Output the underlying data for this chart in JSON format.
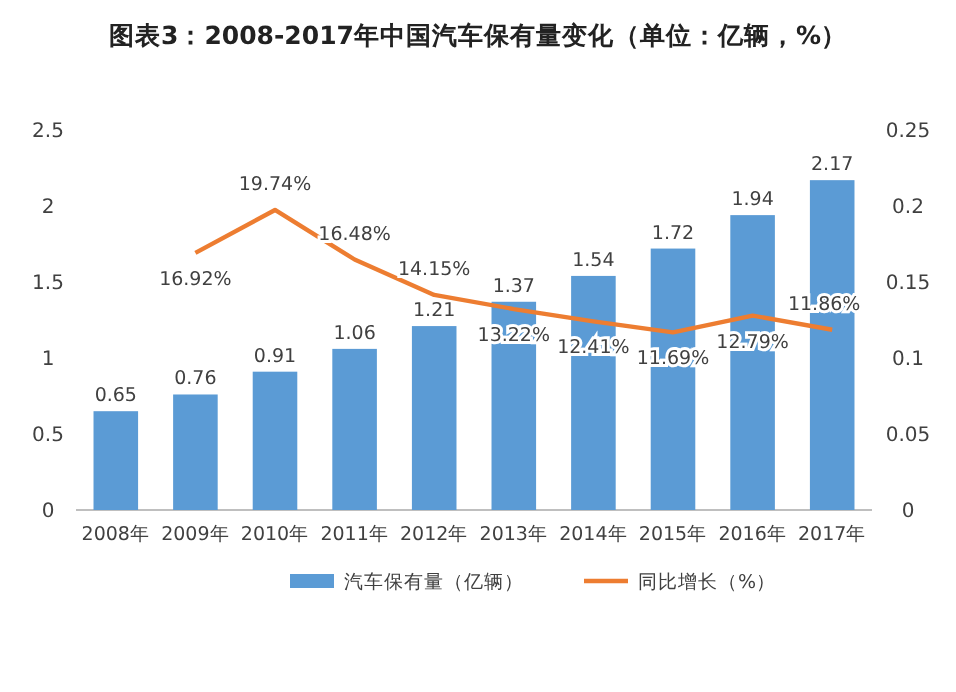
{
  "chart_data": {
    "type": "bar",
    "title": "图表3：2008-2017年中国汽车保有量变化（单位：亿辆，%）",
    "categories": [
      "2008年",
      "2009年",
      "2010年",
      "2011年",
      "2012年",
      "2013年",
      "2014年",
      "2015年",
      "2016年",
      "2017年"
    ],
    "series": [
      {
        "name": "汽车保有量（亿辆）",
        "color": "#5b9bd5",
        "values": [
          0.65,
          0.76,
          0.91,
          1.06,
          1.21,
          1.37,
          1.54,
          1.72,
          1.94,
          2.17
        ],
        "value_labels": [
          "0.65",
          "0.76",
          "0.91",
          "1.06",
          "1.21",
          "1.37",
          "1.54",
          "1.72",
          "1.94",
          "2.17"
        ]
      },
      {
        "name": "同比增长（%）",
        "type": "line",
        "axis": "y2",
        "color": "#ed7d31",
        "marker": "none",
        "values": [
          null,
          0.1692,
          0.1974,
          0.1648,
          0.1415,
          0.1322,
          0.1241,
          0.1169,
          0.1279,
          0.1186
        ],
        "value_labels": [
          null,
          "16.92%",
          "19.74%",
          "16.48%",
          "14.15%",
          "13.22%",
          "12.41%",
          "11.69%",
          "12.79%",
          "11.86%"
        ]
      }
    ],
    "ylim": [
      0,
      2.5
    ],
    "yticks": [
      0,
      0.5,
      1,
      1.5,
      2,
      2.5
    ],
    "y2lim": [
      0,
      0.25
    ],
    "y2ticks": [
      0,
      0.05,
      0.1,
      0.15,
      0.2,
      0.25
    ],
    "legend": "bottom"
  }
}
